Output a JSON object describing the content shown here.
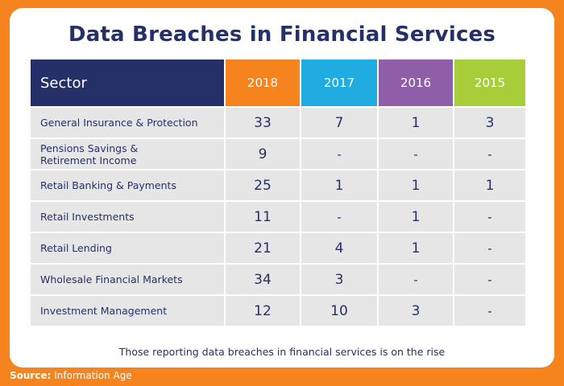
{
  "chart_data": {
    "type": "table",
    "title": "Data Breaches in Financial Services",
    "columns": [
      "Sector",
      "2018",
      "2017",
      "2016",
      "2015"
    ],
    "rows": [
      {
        "sector": "General Insurance & Protection",
        "values": [
          "33",
          "7",
          "1",
          "3"
        ]
      },
      {
        "sector": "Pensions Savings & Retirement Income",
        "values": [
          "9",
          "-",
          "-",
          "-"
        ]
      },
      {
        "sector": "Retail Banking & Payments",
        "values": [
          "25",
          "1",
          "1",
          "1"
        ]
      },
      {
        "sector": "Retail Investments",
        "values": [
          "11",
          "-",
          "1",
          "-"
        ]
      },
      {
        "sector": "Retail Lending",
        "values": [
          "21",
          "4",
          "1",
          "-"
        ]
      },
      {
        "sector": "Wholesale Financial Markets",
        "values": [
          "34",
          "3",
          "-",
          "-"
        ]
      },
      {
        "sector": "Investment Management",
        "values": [
          "12",
          "10",
          "3",
          "-"
        ]
      }
    ],
    "caption": "Those reporting data breaches in financial services is on the rise",
    "column_colors": [
      "#263068",
      "#f5841f",
      "#21ace1",
      "#8e5ea8",
      "#a7ce3a"
    ]
  },
  "source": {
    "label": "Source:",
    "value": "Information Age"
  }
}
